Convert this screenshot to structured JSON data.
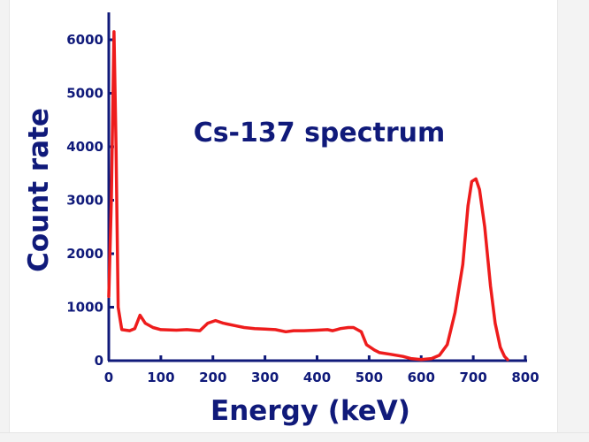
{
  "chart_data": {
    "type": "line",
    "title": "Cs-137 spectrum",
    "xlabel": "Energy (keV)",
    "ylabel": "Count rate",
    "xlim": [
      0,
      800
    ],
    "ylim": [
      0,
      6000
    ],
    "xticks": [
      0,
      100,
      200,
      300,
      400,
      500,
      600,
      700,
      800
    ],
    "yticks": [
      0,
      1000,
      2000,
      3000,
      4000,
      5000,
      6000
    ],
    "grid": false,
    "series": [
      {
        "color": "#ee1c1c",
        "points": [
          [
            0,
            1200
          ],
          [
            5,
            3000
          ],
          [
            10,
            6150
          ],
          [
            14,
            4000
          ],
          [
            18,
            1000
          ],
          [
            25,
            580
          ],
          [
            40,
            560
          ],
          [
            50,
            600
          ],
          [
            60,
            850
          ],
          [
            70,
            700
          ],
          [
            85,
            620
          ],
          [
            100,
            580
          ],
          [
            130,
            570
          ],
          [
            150,
            580
          ],
          [
            175,
            560
          ],
          [
            190,
            700
          ],
          [
            205,
            750
          ],
          [
            220,
            700
          ],
          [
            245,
            650
          ],
          [
            260,
            620
          ],
          [
            280,
            600
          ],
          [
            300,
            590
          ],
          [
            320,
            580
          ],
          [
            340,
            540
          ],
          [
            355,
            560
          ],
          [
            375,
            560
          ],
          [
            400,
            570
          ],
          [
            420,
            580
          ],
          [
            430,
            560
          ],
          [
            445,
            600
          ],
          [
            460,
            620
          ],
          [
            470,
            620
          ],
          [
            485,
            540
          ],
          [
            495,
            300
          ],
          [
            510,
            200
          ],
          [
            520,
            150
          ],
          [
            540,
            120
          ],
          [
            565,
            80
          ],
          [
            580,
            40
          ],
          [
            600,
            20
          ],
          [
            620,
            40
          ],
          [
            635,
            100
          ],
          [
            650,
            300
          ],
          [
            665,
            900
          ],
          [
            680,
            1800
          ],
          [
            690,
            2900
          ],
          [
            697,
            3350
          ],
          [
            705,
            3400
          ],
          [
            712,
            3200
          ],
          [
            722,
            2500
          ],
          [
            733,
            1400
          ],
          [
            742,
            700
          ],
          [
            752,
            250
          ],
          [
            760,
            80
          ],
          [
            766,
            20
          ]
        ]
      }
    ]
  }
}
